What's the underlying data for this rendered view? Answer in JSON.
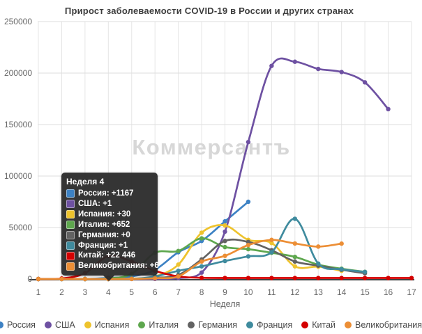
{
  "page": {
    "title": "Прирост заболеваемости COVID-19 в России и других странах",
    "watermark": "Коммерсантъ"
  },
  "chart_data": {
    "type": "line",
    "title": "Прирост заболеваемости COVID-19 в России и других странах",
    "xlabel": "Неделя",
    "x": [
      1,
      2,
      3,
      4,
      5,
      6,
      7,
      8,
      9,
      10,
      11,
      12,
      13,
      14,
      15,
      16,
      17
    ],
    "ylim": [
      0,
      250000
    ],
    "yticks": [
      0,
      50000,
      100000,
      150000,
      200000,
      250000
    ],
    "grid": true,
    "legend_position": "bottom",
    "series": [
      {
        "name": "Россия",
        "color": "#3d82c4",
        "values": [
          0,
          0,
          0,
          1167,
          2500,
          9000,
          26000,
          37000,
          56000,
          75000
        ]
      },
      {
        "name": "США",
        "color": "#6e51a2",
        "values": [
          0,
          0,
          0,
          1,
          10,
          100,
          900,
          6300,
          46000,
          133000,
          207000,
          211000,
          204000,
          201000,
          191000,
          165000
        ]
      },
      {
        "name": "Испания",
        "color": "#eec32d",
        "values": [
          0,
          0,
          0,
          30,
          400,
          2500,
          14000,
          45000,
          52000,
          38000,
          35000,
          12300,
          12000,
          8000
        ]
      },
      {
        "name": "Италия",
        "color": "#5ea74e",
        "values": [
          0,
          0,
          0,
          652,
          5000,
          25500,
          27200,
          39500,
          31000,
          29000,
          25500,
          21500,
          14000,
          10000,
          7000
        ]
      },
      {
        "name": "Германия",
        "color": "#626262",
        "values": [
          0,
          0,
          0,
          0,
          100,
          1200,
          4000,
          19000,
          37000,
          36000,
          28000,
          17000,
          13000,
          9000,
          5600
        ]
      },
      {
        "name": "Франция",
        "color": "#3f8b9e",
        "values": [
          0,
          0,
          0,
          1,
          150,
          2500,
          8000,
          12300,
          17500,
          22000,
          26000,
          58500,
          15000,
          9500,
          6900
        ]
      },
      {
        "name": "Китай",
        "color": "#d40000",
        "values": [
          0,
          500,
          5700,
          22446,
          17000,
          8000,
          2500,
          1200,
          1000,
          1000,
          1000,
          1000,
          1000,
          1000,
          1000,
          1000,
          1000
        ]
      },
      {
        "name": "Великобритания",
        "color": "#ec8e35",
        "values": [
          0,
          0,
          0,
          6,
          100,
          800,
          2500,
          17000,
          22500,
          33000,
          38000,
          34500,
          31500,
          34400
        ]
      }
    ],
    "tooltip": {
      "title": "Неделя 4",
      "anchor_week": 4,
      "rows": [
        {
          "label": "Россия",
          "value": "+1167"
        },
        {
          "label": "США",
          "value": "+1"
        },
        {
          "label": "Испания",
          "value": "+30"
        },
        {
          "label": "Италия",
          "value": "+652"
        },
        {
          "label": "Германия",
          "value": "+0"
        },
        {
          "label": "Франция",
          "value": "+1"
        },
        {
          "label": "Китай",
          "value": "+22 446"
        },
        {
          "label": "Великобритания",
          "value": "+6"
        }
      ]
    }
  }
}
